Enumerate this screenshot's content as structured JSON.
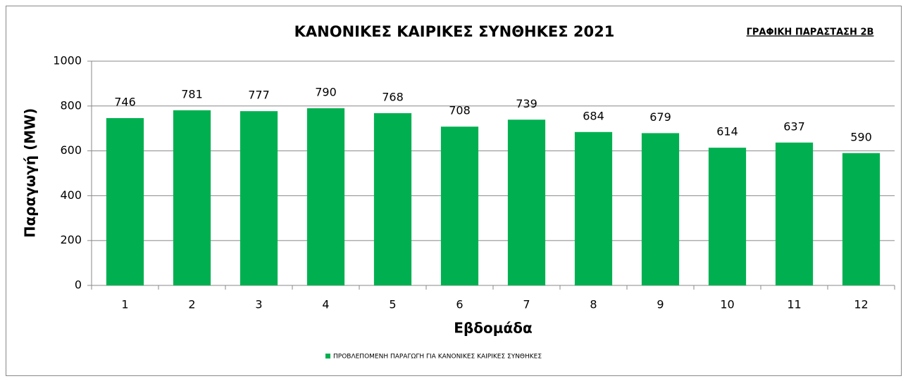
{
  "chart_data": {
    "type": "bar",
    "title": "ΚΑΝΟΝΙΚΕΣ ΚΑΙΡΙΚΕΣ ΣΥΝΘΗΚΕΣ 2021",
    "annotation": "ΓΡΑΦΙΚΗ ΠΑΡΑΣΤΑΣΗ 2Β",
    "x_label": "Εβδομάδα",
    "y_label": "Παραγωγή (MW)",
    "categories": [
      "1",
      "2",
      "3",
      "4",
      "5",
      "6",
      "7",
      "8",
      "9",
      "10",
      "11",
      "12"
    ],
    "series": [
      {
        "name": "ΠΡΟΒΛΕΠΟΜΕΝΗ ΠΑΡΑΓΩΓΗ ΓΙΑ ΚΑΝΟΝΙΚΕΣ ΚΑΙΡΙΚΕΣ ΣΥΝΘΗΚΕΣ",
        "color": "#00b050",
        "values": [
          746,
          781,
          777,
          790,
          768,
          708,
          739,
          684,
          679,
          614,
          637,
          590
        ]
      }
    ],
    "ylim": [
      0,
      1000
    ],
    "yticks": [
      0,
      200,
      400,
      600,
      800,
      1000
    ],
    "grid": true,
    "legend": "bottom"
  }
}
